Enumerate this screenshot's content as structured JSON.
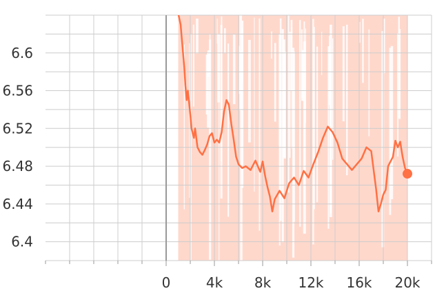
{
  "chart_data": {
    "type": "line",
    "title": "",
    "xlabel": "",
    "ylabel": "",
    "xlim": [
      -10000,
      22000
    ],
    "ylim": [
      6.38,
      6.64
    ],
    "grid": true,
    "x_ticks": [
      0,
      4000,
      8000,
      12000,
      16000,
      20000
    ],
    "x_tick_labels": [
      "0",
      "4k",
      "8k",
      "12k",
      "16k",
      "20k"
    ],
    "y_ticks": [
      6.4,
      6.44,
      6.48,
      6.52,
      6.56,
      6.6
    ],
    "y_tick_labels": [
      "6.4",
      "6.44",
      "6.48",
      "6.52",
      "6.56",
      "6.6"
    ],
    "colors": {
      "smoothed": "#ff7043",
      "raw_band": "#ffd8cc",
      "grid": "#cccccc",
      "zero_axis": "#999999"
    },
    "series": [
      {
        "x": [
          1000,
          1200,
          1400,
          1500,
          1600,
          1700,
          1800,
          2000,
          2100,
          2300,
          2400,
          2600,
          2800,
          3000,
          3200,
          3400,
          3600,
          3800,
          4000,
          4200,
          4400,
          4600,
          4800,
          5000,
          5200,
          5400,
          5600,
          5800,
          6000,
          6300,
          6600,
          7000,
          7400,
          7800,
          8000,
          8200,
          8400,
          8600,
          8800,
          9000,
          9400,
          9800,
          10200,
          10600,
          11000,
          11400,
          11800,
          12200,
          12600,
          13000,
          13400,
          13800,
          14200,
          14600,
          15000,
          15400,
          15800,
          16200,
          16600,
          17000,
          17200,
          17400,
          17600,
          17800,
          18000,
          18200,
          18400,
          18600,
          18800,
          19000,
          19200,
          19400,
          19600,
          19800,
          20000
        ],
        "y": [
          6.642,
          6.63,
          6.6,
          6.585,
          6.565,
          6.55,
          6.56,
          6.535,
          6.52,
          6.51,
          6.52,
          6.5,
          6.495,
          6.492,
          6.497,
          6.503,
          6.512,
          6.515,
          6.505,
          6.508,
          6.505,
          6.516,
          6.538,
          6.55,
          6.545,
          6.525,
          6.508,
          6.49,
          6.482,
          6.478,
          6.48,
          6.476,
          6.486,
          6.474,
          6.485,
          6.47,
          6.458,
          6.448,
          6.432,
          6.445,
          6.454,
          6.446,
          6.462,
          6.468,
          6.46,
          6.475,
          6.468,
          6.482,
          6.495,
          6.51,
          6.522,
          6.516,
          6.505,
          6.488,
          6.482,
          6.476,
          6.482,
          6.488,
          6.5,
          6.496,
          6.476,
          6.456,
          6.432,
          6.44,
          6.45,
          6.455,
          6.48,
          6.485,
          6.49,
          6.507,
          6.5,
          6.506,
          6.49,
          6.478,
          6.472
        ]
      }
    ]
  }
}
